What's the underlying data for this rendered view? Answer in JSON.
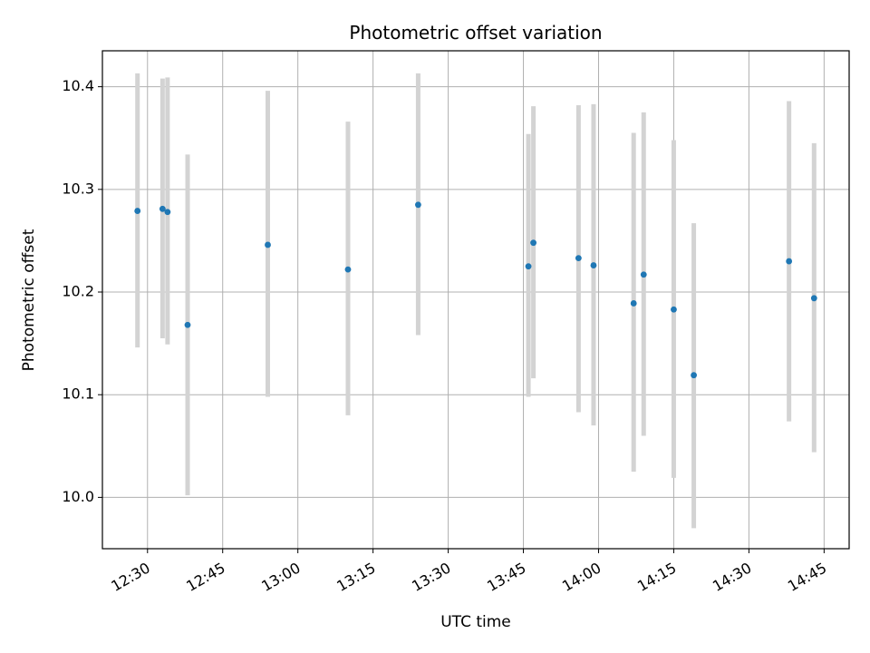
{
  "chart_data": {
    "type": "scatter",
    "title": "Photometric offset variation",
    "xlabel": "UTC time",
    "ylabel": "Photometric offset",
    "grid": true,
    "xlim": [
      "12:21",
      "14:50"
    ],
    "ylim": [
      9.95,
      10.435
    ],
    "x_ticks": [
      "12:30",
      "12:45",
      "13:00",
      "13:15",
      "13:30",
      "13:45",
      "14:00",
      "14:15",
      "14:30",
      "14:45"
    ],
    "y_ticks": [
      10.0,
      10.1,
      10.2,
      10.3,
      10.4
    ],
    "y_tick_labels": [
      "10.0",
      "10.1",
      "10.2",
      "10.3",
      "10.4"
    ],
    "points": [
      {
        "time": "12:28",
        "value": 10.279,
        "err_low": 10.146,
        "err_high": 10.413
      },
      {
        "time": "12:33",
        "value": 10.281,
        "err_low": 10.155,
        "err_high": 10.408
      },
      {
        "time": "12:34",
        "value": 10.278,
        "err_low": 10.149,
        "err_high": 10.409
      },
      {
        "time": "12:38",
        "value": 10.168,
        "err_low": 10.002,
        "err_high": 10.334
      },
      {
        "time": "12:54",
        "value": 10.246,
        "err_low": 10.098,
        "err_high": 10.396
      },
      {
        "time": "13:10",
        "value": 10.222,
        "err_low": 10.08,
        "err_high": 10.366
      },
      {
        "time": "13:24",
        "value": 10.285,
        "err_low": 10.158,
        "err_high": 10.413
      },
      {
        "time": "13:46",
        "value": 10.225,
        "err_low": 10.098,
        "err_high": 10.354
      },
      {
        "time": "13:47",
        "value": 10.248,
        "err_low": 10.116,
        "err_high": 10.381
      },
      {
        "time": "13:56",
        "value": 10.233,
        "err_low": 10.083,
        "err_high": 10.382
      },
      {
        "time": "13:59",
        "value": 10.226,
        "err_low": 10.07,
        "err_high": 10.383
      },
      {
        "time": "14:07",
        "value": 10.189,
        "err_low": 10.025,
        "err_high": 10.355
      },
      {
        "time": "14:09",
        "value": 10.217,
        "err_low": 10.06,
        "err_high": 10.375
      },
      {
        "time": "14:15",
        "value": 10.183,
        "err_low": 10.019,
        "err_high": 10.348
      },
      {
        "time": "14:19",
        "value": 10.119,
        "err_low": 9.97,
        "err_high": 10.267
      },
      {
        "time": "14:38",
        "value": 10.23,
        "err_low": 10.074,
        "err_high": 10.386
      },
      {
        "time": "14:43",
        "value": 10.194,
        "err_low": 10.044,
        "err_high": 10.345
      }
    ],
    "colors": {
      "marker": "#1f77b4",
      "errorbar": "#d3d3d3",
      "grid": "#b0b0b0"
    }
  }
}
